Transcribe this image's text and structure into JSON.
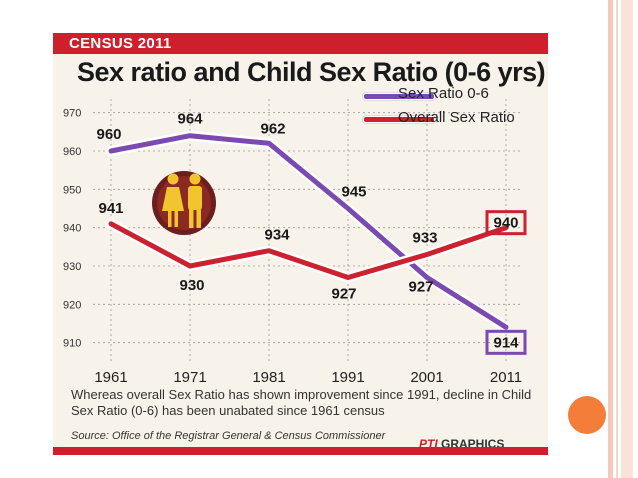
{
  "banner": "CENSUS 2011",
  "chart_data": {
    "type": "line",
    "title": "Sex ratio and Child Sex Ratio (0-6 yrs)",
    "categories": [
      "1961",
      "1971",
      "1981",
      "1991",
      "2001",
      "2011"
    ],
    "ylim": [
      906,
      972
    ],
    "yticks": [
      910,
      920,
      930,
      940,
      950,
      960,
      970
    ],
    "series": [
      {
        "name": "Sex Ratio 0-6",
        "color": "#7b4ab0",
        "values": [
          960,
          964,
          962,
          945,
          927,
          914
        ],
        "labels": [
          "960",
          "964",
          "962",
          "945",
          "927",
          "914"
        ]
      },
      {
        "name": "Overall Sex Ratio",
        "color": "#cc2230",
        "values": [
          941,
          930,
          934,
          927,
          933,
          940
        ],
        "labels": [
          "941",
          "930",
          "934",
          "927",
          "933",
          "940"
        ]
      }
    ],
    "legend_position": "top-right",
    "grid": true
  },
  "footnote": "Whereas overall Sex Ratio has shown improvement since 1991, decline in Child Sex Ratio (0-6) has been unabated since 1961 census",
  "source": "Source: Office of the Registrar General & Census Commissioner",
  "credit_brand": "PTI",
  "credit_rest": " GRAPHICS",
  "colors": {
    "accent": "#cf1f2d",
    "orange_dot": "#f47d3a",
    "purple": "#7b4ab0",
    "red": "#cc2230"
  }
}
